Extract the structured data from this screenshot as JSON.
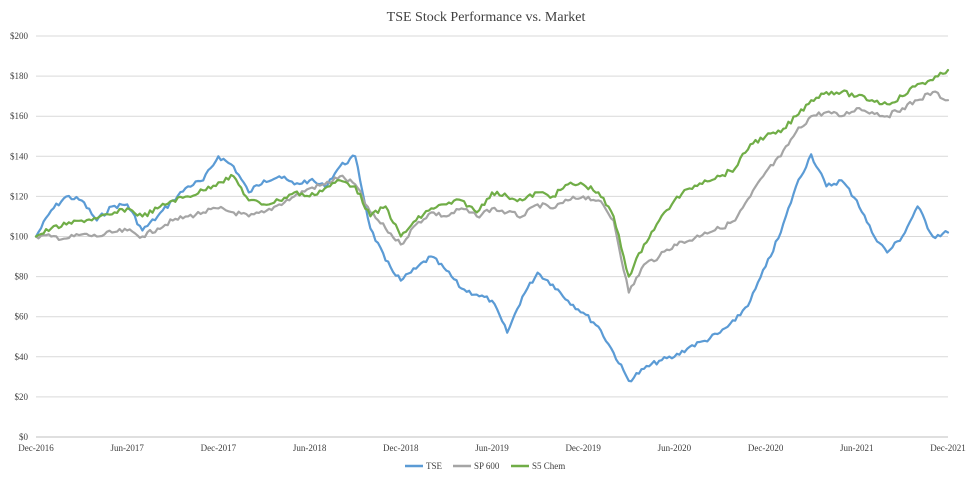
{
  "chart_data": {
    "type": "line",
    "title": "TSE Stock Performance vs. Market",
    "xlabel": "",
    "ylabel": "",
    "ylim": [
      0,
      200
    ],
    "yticks": [
      0,
      20,
      40,
      60,
      80,
      100,
      120,
      140,
      160,
      180,
      200
    ],
    "ytick_labels": [
      "$0",
      "$20",
      "$40",
      "$60",
      "$80",
      "$100",
      "$120",
      "$140",
      "$160",
      "$180",
      "$200"
    ],
    "xlim": [
      "2016-12",
      "2021-12"
    ],
    "xticks": [
      "2016-12",
      "2017-06",
      "2017-12",
      "2018-06",
      "2018-12",
      "2019-06",
      "2019-12",
      "2020-06",
      "2020-12",
      "2021-06",
      "2021-12"
    ],
    "xtick_labels": [
      "Dec-2016",
      "Jun-2017",
      "Dec-2017",
      "Jun-2018",
      "Dec-2018",
      "Jun-2019",
      "Dec-2019",
      "Jun-2020",
      "Dec-2020",
      "Jun-2021",
      "Dec-2021"
    ],
    "grid": "horizontal",
    "legend_position": "bottom-center",
    "series": [
      {
        "name": "TSE",
        "color": "#5b9bd5",
        "points": [
          [
            "2016-12",
            100
          ],
          [
            "2017-01",
            113
          ],
          [
            "2017-02",
            120
          ],
          [
            "2017-03",
            118
          ],
          [
            "2017-04",
            108
          ],
          [
            "2017-05",
            115
          ],
          [
            "2017-06",
            116
          ],
          [
            "2017-07",
            103
          ],
          [
            "2017-08",
            110
          ],
          [
            "2017-09",
            118
          ],
          [
            "2017-10",
            125
          ],
          [
            "2017-11",
            128
          ],
          [
            "2017-12",
            140
          ],
          [
            "2018-01",
            135
          ],
          [
            "2018-02",
            122
          ],
          [
            "2018-03",
            128
          ],
          [
            "2018-04",
            130
          ],
          [
            "2018-05",
            126
          ],
          [
            "2018-06",
            128
          ],
          [
            "2018-07",
            125
          ],
          [
            "2018-08",
            135
          ],
          [
            "2018-09",
            140
          ],
          [
            "2018-10",
            104
          ],
          [
            "2018-11",
            88
          ],
          [
            "2018-12",
            78
          ],
          [
            "2019-01",
            84
          ],
          [
            "2019-02",
            90
          ],
          [
            "2019-03",
            83
          ],
          [
            "2019-04",
            74
          ],
          [
            "2019-05",
            71
          ],
          [
            "2019-06",
            68
          ],
          [
            "2019-07",
            52
          ],
          [
            "2019-08",
            70
          ],
          [
            "2019-09",
            82
          ],
          [
            "2019-10",
            76
          ],
          [
            "2019-11",
            68
          ],
          [
            "2019-12",
            62
          ],
          [
            "2020-01",
            55
          ],
          [
            "2020-02",
            42
          ],
          [
            "2020-03",
            28
          ],
          [
            "2020-04",
            34
          ],
          [
            "2020-05",
            38
          ],
          [
            "2020-06",
            40
          ],
          [
            "2020-07",
            45
          ],
          [
            "2020-08",
            48
          ],
          [
            "2020-09",
            52
          ],
          [
            "2020-10",
            58
          ],
          [
            "2020-11",
            68
          ],
          [
            "2020-12",
            85
          ],
          [
            "2021-01",
            102
          ],
          [
            "2021-02",
            125
          ],
          [
            "2021-03",
            141
          ],
          [
            "2021-04",
            125
          ],
          [
            "2021-05",
            128
          ],
          [
            "2021-06",
            118
          ],
          [
            "2021-07",
            102
          ],
          [
            "2021-08",
            92
          ],
          [
            "2021-09",
            100
          ],
          [
            "2021-10",
            115
          ],
          [
            "2021-11",
            100
          ],
          [
            "2021-12",
            102
          ]
        ]
      },
      {
        "name": "SP 600",
        "color": "#a5a5a5",
        "points": [
          [
            "2016-12",
            100
          ],
          [
            "2017-01",
            100
          ],
          [
            "2017-02",
            99
          ],
          [
            "2017-03",
            101
          ],
          [
            "2017-04",
            100
          ],
          [
            "2017-05",
            102
          ],
          [
            "2017-06",
            103
          ],
          [
            "2017-07",
            100
          ],
          [
            "2017-08",
            104
          ],
          [
            "2017-09",
            108
          ],
          [
            "2017-10",
            110
          ],
          [
            "2017-11",
            112
          ],
          [
            "2017-12",
            114
          ],
          [
            "2018-01",
            112
          ],
          [
            "2018-02",
            110
          ],
          [
            "2018-03",
            112
          ],
          [
            "2018-04",
            116
          ],
          [
            "2018-05",
            120
          ],
          [
            "2018-06",
            124
          ],
          [
            "2018-07",
            126
          ],
          [
            "2018-08",
            130
          ],
          [
            "2018-09",
            126
          ],
          [
            "2018-10",
            112
          ],
          [
            "2018-11",
            104
          ],
          [
            "2018-12",
            96
          ],
          [
            "2019-01",
            106
          ],
          [
            "2019-02",
            112
          ],
          [
            "2019-03",
            110
          ],
          [
            "2019-04",
            114
          ],
          [
            "2019-05",
            110
          ],
          [
            "2019-06",
            114
          ],
          [
            "2019-07",
            112
          ],
          [
            "2019-08",
            110
          ],
          [
            "2019-09",
            116
          ],
          [
            "2019-10",
            114
          ],
          [
            "2019-11",
            118
          ],
          [
            "2019-12",
            120
          ],
          [
            "2020-01",
            118
          ],
          [
            "2020-02",
            108
          ],
          [
            "2020-03",
            72
          ],
          [
            "2020-04",
            86
          ],
          [
            "2020-05",
            90
          ],
          [
            "2020-06",
            96
          ],
          [
            "2020-07",
            98
          ],
          [
            "2020-08",
            102
          ],
          [
            "2020-09",
            104
          ],
          [
            "2020-10",
            108
          ],
          [
            "2020-11",
            120
          ],
          [
            "2020-12",
            132
          ],
          [
            "2021-01",
            140
          ],
          [
            "2021-02",
            152
          ],
          [
            "2021-03",
            160
          ],
          [
            "2021-04",
            162
          ],
          [
            "2021-05",
            160
          ],
          [
            "2021-06",
            164
          ],
          [
            "2021-07",
            162
          ],
          [
            "2021-08",
            160
          ],
          [
            "2021-09",
            164
          ],
          [
            "2021-10",
            168
          ],
          [
            "2021-11",
            172
          ],
          [
            "2021-12",
            168
          ]
        ]
      },
      {
        "name": "S5 Chem",
        "color": "#70ad47",
        "points": [
          [
            "2016-12",
            100
          ],
          [
            "2017-01",
            104
          ],
          [
            "2017-02",
            106
          ],
          [
            "2017-03",
            108
          ],
          [
            "2017-04",
            109
          ],
          [
            "2017-05",
            111
          ],
          [
            "2017-06",
            114
          ],
          [
            "2017-07",
            110
          ],
          [
            "2017-08",
            114
          ],
          [
            "2017-09",
            118
          ],
          [
            "2017-10",
            120
          ],
          [
            "2017-11",
            123
          ],
          [
            "2017-12",
            127
          ],
          [
            "2018-01",
            130
          ],
          [
            "2018-02",
            118
          ],
          [
            "2018-03",
            116
          ],
          [
            "2018-04",
            118
          ],
          [
            "2018-05",
            122
          ],
          [
            "2018-06",
            120
          ],
          [
            "2018-07",
            124
          ],
          [
            "2018-08",
            128
          ],
          [
            "2018-09",
            125
          ],
          [
            "2018-10",
            110
          ],
          [
            "2018-11",
            115
          ],
          [
            "2018-12",
            100
          ],
          [
            "2019-01",
            108
          ],
          [
            "2019-02",
            114
          ],
          [
            "2019-03",
            116
          ],
          [
            "2019-04",
            118
          ],
          [
            "2019-05",
            112
          ],
          [
            "2019-06",
            122
          ],
          [
            "2019-07",
            120
          ],
          [
            "2019-08",
            118
          ],
          [
            "2019-09",
            122
          ],
          [
            "2019-10",
            120
          ],
          [
            "2019-11",
            126
          ],
          [
            "2019-12",
            126
          ],
          [
            "2020-01",
            122
          ],
          [
            "2020-02",
            110
          ],
          [
            "2020-03",
            80
          ],
          [
            "2020-04",
            96
          ],
          [
            "2020-05",
            108
          ],
          [
            "2020-06",
            118
          ],
          [
            "2020-07",
            124
          ],
          [
            "2020-08",
            128
          ],
          [
            "2020-09",
            130
          ],
          [
            "2020-10",
            134
          ],
          [
            "2020-11",
            146
          ],
          [
            "2020-12",
            150
          ],
          [
            "2021-01",
            152
          ],
          [
            "2021-02",
            160
          ],
          [
            "2021-03",
            168
          ],
          [
            "2021-04",
            172
          ],
          [
            "2021-05",
            172
          ],
          [
            "2021-06",
            170
          ],
          [
            "2021-07",
            168
          ],
          [
            "2021-08",
            166
          ],
          [
            "2021-09",
            170
          ],
          [
            "2021-10",
            176
          ],
          [
            "2021-11",
            178
          ],
          [
            "2021-12",
            183
          ]
        ]
      }
    ]
  }
}
